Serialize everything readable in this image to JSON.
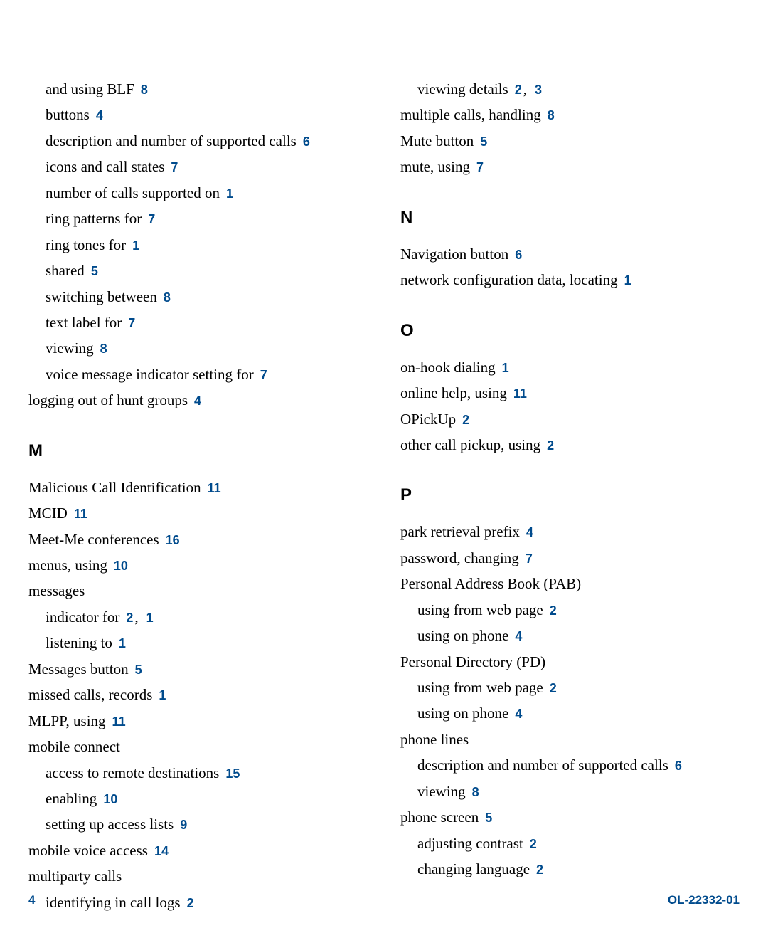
{
  "colors": {
    "link": "#004b8d",
    "text": "#000000",
    "bg": "#ffffff"
  },
  "left": {
    "initial": [
      {
        "text": "and using BLF",
        "pages": [
          "8"
        ],
        "indent": 1
      },
      {
        "text": "buttons",
        "pages": [
          "4"
        ],
        "indent": 1
      },
      {
        "text": "description and number of supported calls",
        "pages": [
          "6"
        ],
        "indent": 1
      },
      {
        "text": "icons and call states",
        "pages": [
          "7"
        ],
        "indent": 1
      },
      {
        "text": "number of calls supported on",
        "pages": [
          "1"
        ],
        "indent": 1
      },
      {
        "text": "ring patterns for",
        "pages": [
          "7"
        ],
        "indent": 1
      },
      {
        "text": "ring tones for",
        "pages": [
          "1"
        ],
        "indent": 1
      },
      {
        "text": "shared",
        "pages": [
          "5"
        ],
        "indent": 1
      },
      {
        "text": "switching between",
        "pages": [
          "8"
        ],
        "indent": 1
      },
      {
        "text": "text label for",
        "pages": [
          "7"
        ],
        "indent": 1
      },
      {
        "text": "viewing",
        "pages": [
          "8"
        ],
        "indent": 1
      },
      {
        "text": "voice message indicator setting for",
        "pages": [
          "7"
        ],
        "indent": 1
      },
      {
        "text": "logging out of hunt groups",
        "pages": [
          "4"
        ],
        "indent": 0
      }
    ],
    "section_m": "M",
    "m": [
      {
        "text": "Malicious Call Identification",
        "pages": [
          "11"
        ],
        "indent": 0
      },
      {
        "text": "MCID",
        "pages": [
          "11"
        ],
        "indent": 0
      },
      {
        "text": "Meet-Me conferences",
        "pages": [
          "16"
        ],
        "indent": 0
      },
      {
        "text": "menus, using",
        "pages": [
          "10"
        ],
        "indent": 0
      },
      {
        "text": "messages",
        "pages": [],
        "indent": 0
      },
      {
        "text": "indicator for",
        "pages": [
          "2",
          "1"
        ],
        "indent": 1
      },
      {
        "text": "listening to",
        "pages": [
          "1"
        ],
        "indent": 1
      },
      {
        "text": "Messages button",
        "pages": [
          "5"
        ],
        "indent": 0
      },
      {
        "text": "missed calls, records",
        "pages": [
          "1"
        ],
        "indent": 0
      },
      {
        "text": "MLPP, using",
        "pages": [
          "11"
        ],
        "indent": 0
      },
      {
        "text": "mobile connect",
        "pages": [],
        "indent": 0
      },
      {
        "text": "access to remote destinations",
        "pages": [
          "15"
        ],
        "indent": 1
      },
      {
        "text": "enabling",
        "pages": [
          "10"
        ],
        "indent": 1
      },
      {
        "text": "setting up access lists",
        "pages": [
          "9"
        ],
        "indent": 1
      },
      {
        "text": "mobile voice access",
        "pages": [
          "14"
        ],
        "indent": 0
      },
      {
        "text": "multiparty calls",
        "pages": [],
        "indent": 0
      },
      {
        "text": "identifying in call logs",
        "pages": [
          "2"
        ],
        "indent": 1
      }
    ]
  },
  "right": {
    "initial": [
      {
        "text": "viewing details",
        "pages": [
          "2",
          "3"
        ],
        "indent": 1
      },
      {
        "text": "multiple calls, handling",
        "pages": [
          "8"
        ],
        "indent": 0
      },
      {
        "text": "Mute button",
        "pages": [
          "5"
        ],
        "indent": 0
      },
      {
        "text": "mute, using",
        "pages": [
          "7"
        ],
        "indent": 0
      }
    ],
    "section_n": "N",
    "n": [
      {
        "text": "Navigation button",
        "pages": [
          "6"
        ],
        "indent": 0
      },
      {
        "text": "network configuration data, locating",
        "pages": [
          "1"
        ],
        "indent": 0
      }
    ],
    "section_o": "O",
    "o": [
      {
        "text": "on-hook dialing",
        "pages": [
          "1"
        ],
        "indent": 0
      },
      {
        "text": "online help, using",
        "pages": [
          "11"
        ],
        "indent": 0
      },
      {
        "text": "OPickUp",
        "pages": [
          "2"
        ],
        "indent": 0
      },
      {
        "text": "other call pickup, using",
        "pages": [
          "2"
        ],
        "indent": 0
      }
    ],
    "section_p": "P",
    "p": [
      {
        "text": "park retrieval prefix",
        "pages": [
          "4"
        ],
        "indent": 0
      },
      {
        "text": "password, changing",
        "pages": [
          "7"
        ],
        "indent": 0
      },
      {
        "text": "Personal Address Book (PAB)",
        "pages": [],
        "indent": 0
      },
      {
        "text": "using from web page",
        "pages": [
          "2"
        ],
        "indent": 1
      },
      {
        "text": "using on phone",
        "pages": [
          "4"
        ],
        "indent": 1
      },
      {
        "text": "Personal Directory (PD)",
        "pages": [],
        "indent": 0
      },
      {
        "text": "using from web page",
        "pages": [
          "2"
        ],
        "indent": 1
      },
      {
        "text": "using on phone",
        "pages": [
          "4"
        ],
        "indent": 1
      },
      {
        "text": "phone lines",
        "pages": [],
        "indent": 0
      },
      {
        "text": "description and number of supported calls",
        "pages": [
          "6"
        ],
        "indent": 1
      },
      {
        "text": "viewing",
        "pages": [
          "8"
        ],
        "indent": 1
      },
      {
        "text": "phone screen",
        "pages": [
          "5"
        ],
        "indent": 0
      },
      {
        "text": "adjusting contrast",
        "pages": [
          "2"
        ],
        "indent": 1
      },
      {
        "text": "changing language",
        "pages": [
          "2"
        ],
        "indent": 1
      }
    ]
  },
  "footer": {
    "page": "4",
    "docid": "OL-22332-01"
  }
}
